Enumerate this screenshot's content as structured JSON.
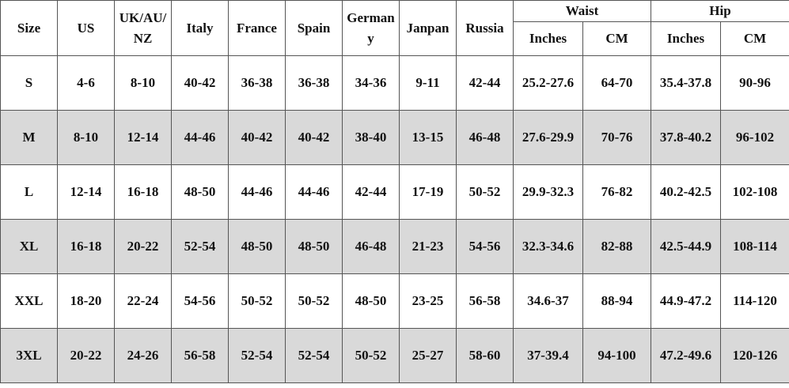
{
  "table": {
    "columns": [
      "Size",
      "US",
      "UK/AU/NZ",
      "Italy",
      "France",
      "Spain",
      "Germany",
      "Janpan",
      "Russia"
    ],
    "groups": [
      {
        "label": "Waist",
        "sub": [
          "Inches",
          "CM"
        ]
      },
      {
        "label": "Hip",
        "sub": [
          "Inches",
          "CM"
        ]
      }
    ],
    "rows": [
      [
        "S",
        "4-6",
        "8-10",
        "40-42",
        "36-38",
        "36-38",
        "34-36",
        "9-11",
        "42-44",
        "25.2-27.6",
        "64-70",
        "35.4-37.8",
        "90-96"
      ],
      [
        "M",
        "8-10",
        "12-14",
        "44-46",
        "40-42",
        "40-42",
        "38-40",
        "13-15",
        "46-48",
        "27.6-29.9",
        "70-76",
        "37.8-40.2",
        "96-102"
      ],
      [
        "L",
        "12-14",
        "16-18",
        "48-50",
        "44-46",
        "44-46",
        "42-44",
        "17-19",
        "50-52",
        "29.9-32.3",
        "76-82",
        "40.2-42.5",
        "102-108"
      ],
      [
        "XL",
        "16-18",
        "20-22",
        "52-54",
        "48-50",
        "48-50",
        "46-48",
        "21-23",
        "54-56",
        "32.3-34.6",
        "82-88",
        "42.5-44.9",
        "108-114"
      ],
      [
        "XXL",
        "18-20",
        "22-24",
        "54-56",
        "50-52",
        "50-52",
        "48-50",
        "23-25",
        "56-58",
        "34.6-37",
        "88-94",
        "44.9-47.2",
        "114-120"
      ],
      [
        "3XL",
        "20-22",
        "24-26",
        "56-58",
        "52-54",
        "52-54",
        "50-52",
        "25-27",
        "58-60",
        "37-39.4",
        "94-100",
        "47.2-49.6",
        "120-126"
      ]
    ]
  }
}
